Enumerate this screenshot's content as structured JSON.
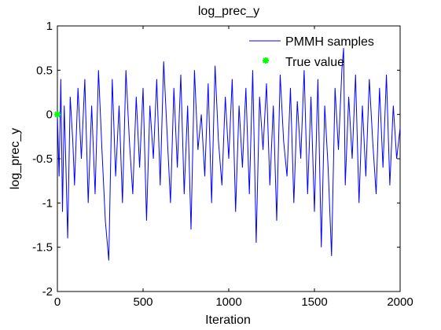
{
  "chart_data": {
    "type": "line",
    "title": "log_prec_y",
    "xlabel": "Iteration",
    "ylabel": "log_prec_y",
    "xlim": [
      0,
      2000
    ],
    "ylim": [
      -2,
      1
    ],
    "x_ticks": [
      "0",
      "500",
      "1000",
      "1500",
      "2000"
    ],
    "y_ticks": [
      "-2",
      "-1.5",
      "-1",
      "-0.5",
      "0",
      "0.5",
      "1"
    ],
    "x_tick_values": [
      0,
      500,
      1000,
      1500,
      2000
    ],
    "y_tick_values": [
      -2,
      -1.5,
      -1,
      -0.5,
      0,
      0.5,
      1
    ],
    "grid": false,
    "legend": {
      "placement": "top-right",
      "entries": [
        "PMMH samples",
        "True value"
      ]
    },
    "series": [
      {
        "name": "PMMH samples",
        "color": "#0000ff",
        "kind": "line",
        "x": [
          0,
          10,
          20,
          30,
          40,
          50,
          60,
          75,
          90,
          100,
          120,
          140,
          160,
          180,
          200,
          220,
          240,
          260,
          280,
          300,
          320,
          340,
          360,
          380,
          400,
          420,
          440,
          460,
          480,
          500,
          520,
          540,
          560,
          580,
          600,
          620,
          640,
          660,
          680,
          700,
          720,
          740,
          760,
          780,
          800,
          820,
          840,
          860,
          880,
          900,
          920,
          940,
          960,
          980,
          1000,
          1020,
          1040,
          1060,
          1080,
          1100,
          1120,
          1140,
          1160,
          1180,
          1200,
          1220,
          1240,
          1260,
          1280,
          1300,
          1320,
          1340,
          1360,
          1380,
          1400,
          1420,
          1440,
          1460,
          1480,
          1500,
          1520,
          1540,
          1560,
          1580,
          1600,
          1620,
          1640,
          1660,
          1670,
          1680,
          1700,
          1720,
          1740,
          1760,
          1780,
          1800,
          1820,
          1840,
          1860,
          1880,
          1900,
          1920,
          1940,
          1960,
          1980,
          2000
        ],
        "y": [
          0,
          -0.7,
          0.4,
          -1.1,
          0.1,
          -0.6,
          -1.4,
          0.2,
          -0.3,
          -0.8,
          0.3,
          -0.5,
          0.4,
          -1.0,
          0.1,
          -0.9,
          0.5,
          -0.4,
          -1.2,
          -1.65,
          0.4,
          -0.7,
          0.1,
          -1.0,
          0.5,
          -0.3,
          -0.9,
          0.2,
          -0.6,
          0.3,
          -1.2,
          0.1,
          -0.5,
          0.4,
          -0.8,
          0.6,
          -0.2,
          -1.0,
          0.3,
          -0.6,
          0.45,
          -0.9,
          0.1,
          -1.3,
          0.5,
          -0.4,
          0.0,
          -0.7,
          0.35,
          -1.0,
          0.55,
          -0.3,
          -0.8,
          0.2,
          -0.5,
          0.4,
          -1.1,
          0.1,
          -0.6,
          0.3,
          -0.9,
          0.5,
          -1.45,
          0.2,
          -0.4,
          0.35,
          -0.8,
          0.1,
          -1.2,
          0.45,
          -0.3,
          -0.7,
          0.3,
          -1.0,
          0.15,
          -0.5,
          0.5,
          -0.9,
          0.2,
          -1.1,
          0.4,
          -1.5,
          0.1,
          -0.6,
          -1.6,
          0.3,
          -0.4,
          0.5,
          0.75,
          -0.8,
          0.2,
          -0.5,
          0.45,
          -1.0,
          0.1,
          -0.7,
          0.4,
          -0.3,
          -0.9,
          0.3,
          -0.6,
          0.45,
          -0.8,
          0.1,
          -0.5,
          -0.15
        ]
      },
      {
        "name": "True value",
        "color": "#00ff00",
        "kind": "marker",
        "x": [
          0
        ],
        "y": [
          0
        ]
      }
    ]
  }
}
